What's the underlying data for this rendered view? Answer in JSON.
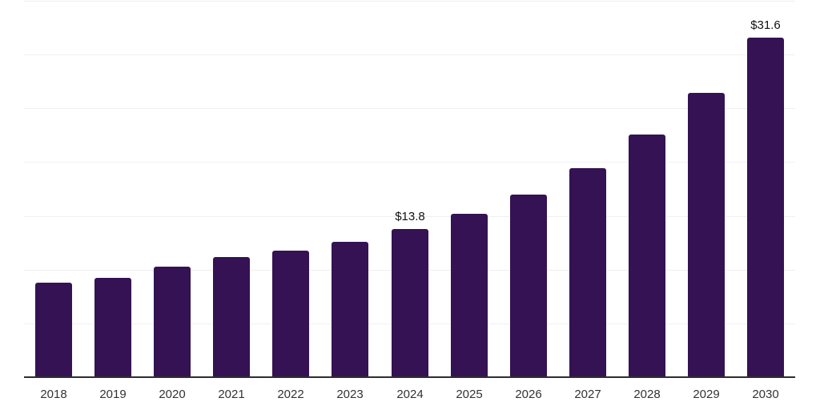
{
  "chart_data": {
    "type": "bar",
    "title": "",
    "categories": [
      "2018",
      "2019",
      "2020",
      "2021",
      "2022",
      "2023",
      "2024",
      "2025",
      "2026",
      "2027",
      "2028",
      "2029",
      "2030"
    ],
    "values": [
      8.8,
      9.2,
      10.3,
      11.2,
      11.8,
      12.6,
      13.8,
      15.2,
      17.0,
      19.4,
      22.6,
      26.4,
      31.6
    ],
    "data_labels": {
      "2024": "$13.8",
      "2030": "$31.6"
    },
    "xlabel": "",
    "ylabel": "",
    "ylim": [
      0,
      35
    ],
    "gridline_step": 5,
    "grid": true,
    "legend": "none",
    "colors": {
      "bar": "#341254",
      "gridline": "#f0f0f0",
      "axis_line": "#2e2e2e",
      "tick_label": "#333333",
      "value_label": "#111111",
      "background": "#ffffff"
    }
  },
  "layout_note": "yearly bar chart, value labels shown only for 2024 and 2030"
}
